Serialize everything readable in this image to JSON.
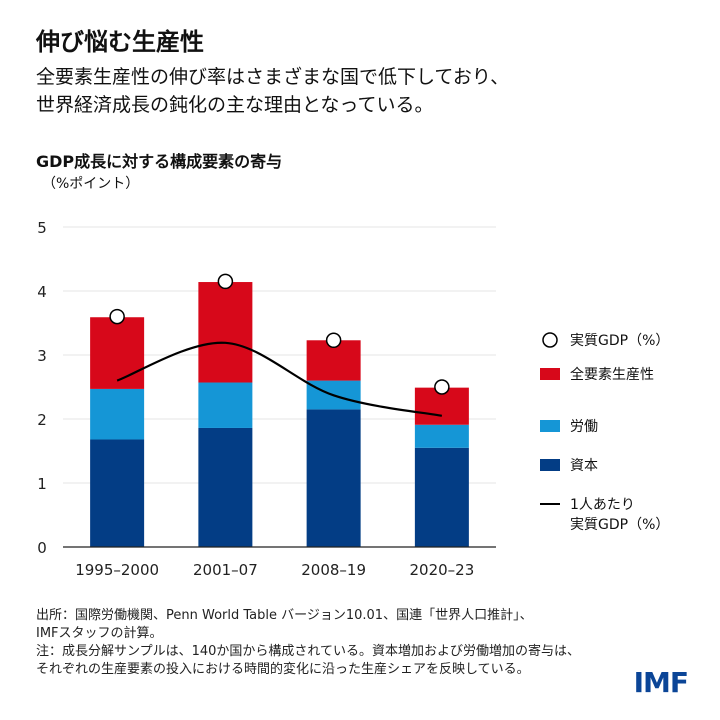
{
  "header": {
    "title": "伸び悩む生産性",
    "subtitle_line1": "全要素生産性の伸び率はさまざまな国で低下しており、",
    "subtitle_line2": "世界経済成長の鈍化の主な理由となっている。"
  },
  "chart_data": {
    "type": "bar",
    "title": "GDP成長に対する構成要素の寄与",
    "ylabel": "（%ポイント）",
    "xlabel": "",
    "ylim": [
      0,
      5
    ],
    "yticks": [
      0,
      1,
      2,
      3,
      4,
      5
    ],
    "grid": true,
    "stacked": true,
    "legend_position": "right",
    "categories": [
      "1995–2000",
      "2001–07",
      "2008–19",
      "2020–23"
    ],
    "series": [
      {
        "name": "資本",
        "type": "bar",
        "color": "#033d85",
        "values": [
          1.68,
          1.86,
          2.15,
          1.55
        ]
      },
      {
        "name": "労働",
        "type": "bar",
        "color": "#1596d6",
        "values": [
          0.79,
          0.71,
          0.45,
          0.36
        ]
      },
      {
        "name": "全要素生産性",
        "type": "bar",
        "color": "#d7081a",
        "values": [
          1.12,
          1.57,
          0.63,
          0.58
        ]
      },
      {
        "name": "実質GDP（%）",
        "type": "scatter",
        "color": "#ffffff",
        "values": [
          3.6,
          4.15,
          3.23,
          2.5
        ]
      },
      {
        "name": "1人あたり実質GDP（%）",
        "type": "line",
        "color": "#000000",
        "values": [
          2.6,
          3.19,
          2.37,
          2.05
        ]
      }
    ]
  },
  "legend": {
    "real_gdp": "実質GDP（%）",
    "tfp": "全要素生産性",
    "labor": "労働",
    "capital": "資本",
    "per_capita_line1": "1人あたり",
    "per_capita_line2": "実質GDP（%）"
  },
  "notes": {
    "source_line1": "出所：国際労働機関、Penn World Table バージョン10.01、国連「世界人口推計」、",
    "source_line2": "IMFスタッフの計算。",
    "note_line1": "注：成長分解サンプルは、140か国から構成されている。資本増加および労働増加の寄与は、",
    "note_line2": "それぞれの生産要素の投入における時間的変化に沿った生産シェアを反映している。"
  },
  "logo": "IMF"
}
